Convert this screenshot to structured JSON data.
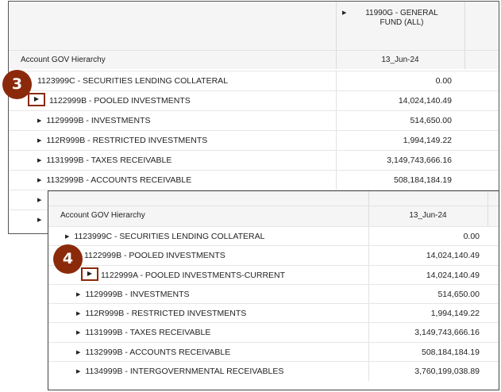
{
  "panel1": {
    "column_header": "11990G - GENERAL FUND (ALL)",
    "hierarchy_label": "Account GOV Hierarchy",
    "date": "13_Jun-24",
    "rows": [
      {
        "label": "1123999C - SECURITIES LENDING COLLATERAL",
        "value": "0.00",
        "arrow": false
      },
      {
        "label": "1122999B - POOLED INVESTMENTS",
        "value": "14,024,140.49",
        "arrow": false
      },
      {
        "label": "1129999B - INVESTMENTS",
        "value": "514,650.00",
        "arrow": true
      },
      {
        "label": "112R999B - RESTRICTED INVESTMENTS",
        "value": "1,994,149.22",
        "arrow": true
      },
      {
        "label": "1131999B - TAXES RECEIVABLE",
        "value": "3,149,743,666.16",
        "arrow": true
      },
      {
        "label": "1132999B - ACCOUNTS RECEIVABLE",
        "value": "508,184,184.19",
        "arrow": true
      },
      {
        "label": "",
        "value": "",
        "arrow": true
      },
      {
        "label": "",
        "value": "",
        "arrow": true
      }
    ]
  },
  "panel2": {
    "hierarchy_label": "Account GOV Hierarchy",
    "date": "13_Jun-24",
    "rows": [
      {
        "label": "1123999C - SECURITIES LENDING COLLATERAL",
        "value": "0.00",
        "arrow": true
      },
      {
        "label": "1122999B - POOLED INVESTMENTS",
        "value": "14,024,140.49",
        "arrow": false
      },
      {
        "label": "1122999A - POOLED INVESTMENTS-CURRENT",
        "value": "14,024,140.49",
        "arrow": false
      },
      {
        "label": "1129999B - INVESTMENTS",
        "value": "514,650.00",
        "arrow": true
      },
      {
        "label": "112R999B - RESTRICTED INVESTMENTS",
        "value": "1,994,149.22",
        "arrow": true
      },
      {
        "label": "1131999B - TAXES RECEIVABLE",
        "value": "3,149,743,666.16",
        "arrow": true
      },
      {
        "label": "1132999B - ACCOUNTS RECEIVABLE",
        "value": "508,184,184.19",
        "arrow": true
      },
      {
        "label": "1134999B - INTERGOVERNMENTAL RECEIVABLES",
        "value": "3,760,199,038.89",
        "arrow": true
      }
    ]
  },
  "steps": {
    "step3": "3",
    "step4": "4"
  },
  "icons": {
    "expand": "caret-right-icon"
  },
  "colors": {
    "badge": "#8b2a0b",
    "highlight_border": "#8a2a0a"
  }
}
